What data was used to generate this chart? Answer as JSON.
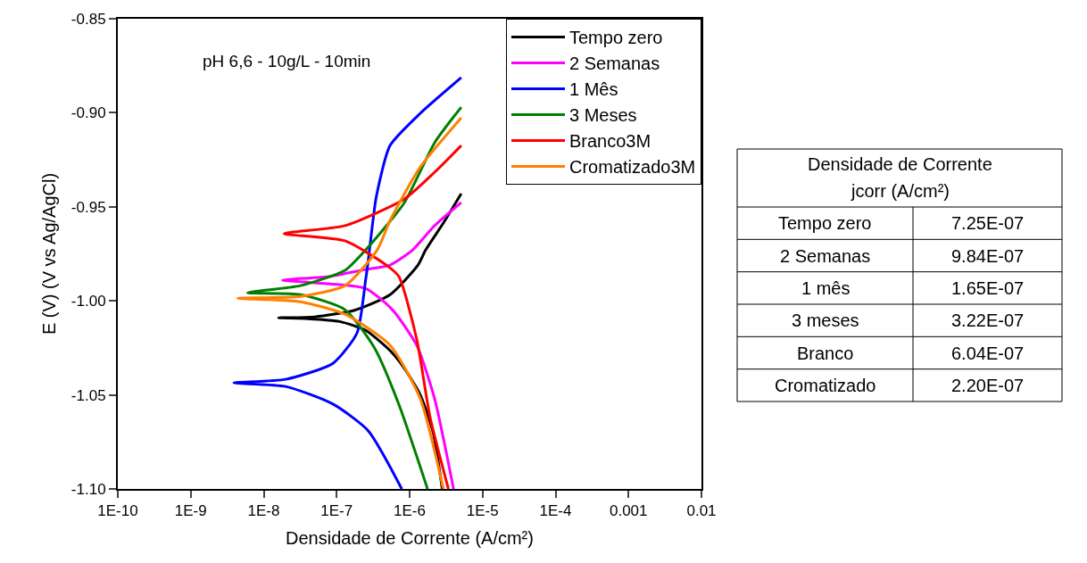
{
  "chart_data": [
    {
      "type": "line",
      "xlabel": "Densidade de Corrente (A/cm²)",
      "ylabel": "E (V) (V vs Ag/AgCl)",
      "log": "x",
      "xlim": [
        1e-10,
        0.01
      ],
      "ylim": [
        -1.1,
        -0.85
      ],
      "xticks": [
        {
          "value": 1e-10,
          "label": "1E-10"
        },
        {
          "value": 1e-09,
          "label": "1E-9"
        },
        {
          "value": 1e-08,
          "label": "1E-8"
        },
        {
          "value": 1e-07,
          "label": "1E-7"
        },
        {
          "value": 1e-06,
          "label": "1E-6"
        },
        {
          "value": 1e-05,
          "label": "1E-5"
        },
        {
          "value": 0.0001,
          "label": "1E-4"
        },
        0.001,
        0.01
      ],
      "yticks": [
        -0.85,
        {
          "value": -0.9,
          "label": "-0.90"
        },
        -0.95,
        {
          "value": -1.0,
          "label": "-1.00"
        },
        -1.05,
        {
          "value": -1.1,
          "label": "-1.10"
        }
      ],
      "legend": "top right",
      "marker": "none",
      "line_style": "solid",
      "annotations": [
        "pH 6,6 - 10g/L - 10min"
      ],
      "series": [
        {
          "name": "Tempo zero",
          "color": "#000000",
          "x": [
            2.8e-06,
            2.1e-06,
            1.4e-06,
            8.5e-07,
            5.4e-07,
            2.5e-07,
            1.1e-07,
            4e-08,
            1.6e-08,
            5e-08,
            1.76e-07,
            5.4e-07,
            1.3e-06,
            1.66e-06,
            2.9e-06,
            5.1e-06
          ],
          "values": [
            -1.1,
            -1.07,
            -1.05,
            -1.036,
            -1.0265,
            -1.0157,
            -1.011,
            -1.0095,
            -1.009,
            -1.0085,
            -1.005,
            -0.9967,
            -0.981,
            -0.9729,
            -0.9586,
            -0.943
          ]
        },
        {
          "name": "2 Semanas",
          "color": "#ff00ff",
          "x": [
            4e-06,
            2.2e-06,
            1.25e-06,
            5.8e-07,
            2.5e-07,
            5e-08,
            1.8e-08,
            8.2e-08,
            2.5e-07,
            5.4e-07,
            1.1e-06,
            2.2e-06,
            5.1e-06
          ],
          "values": [
            -1.1,
            -1.052,
            -1.0236,
            -1.0047,
            -0.9934,
            -0.9904,
            -0.989,
            -0.987,
            -0.9833,
            -0.981,
            -0.9729,
            -0.96,
            -0.9477
          ]
        },
        {
          "name": "1 Mês",
          "color": "#0000ff",
          "x": [
            7.8e-07,
            2.7e-07,
            8.9e-08,
            2e-08,
            3.9e-09,
            2e-08,
            8.9e-08,
            1.9e-07,
            2.5e-07,
            2.7e-07,
            3.5e-07,
            5.4e-07,
            1.4e-06,
            5.1e-06
          ],
          "values": [
            -1.1,
            -1.069,
            -1.0549,
            -1.0455,
            -1.0436,
            -1.0417,
            -1.0332,
            -1.0171,
            -0.9885,
            -0.979,
            -0.9444,
            -0.9174,
            -0.9003,
            -0.8813
          ]
        },
        {
          "name": "3 Meses",
          "color": "#008000",
          "x": [
            1.76e-06,
            7.1e-07,
            3.3e-07,
            1.3e-07,
            3.2e-08,
            6e-09,
            3.2e-08,
            1.3e-07,
            2.5e-07,
            8.5e-07,
            2.2e-06,
            5.1e-06
          ],
          "values": [
            -1.1,
            -1.0549,
            -1.025,
            -1.0047,
            -0.9967,
            -0.9957,
            -0.9919,
            -0.9838,
            -0.9729,
            -0.9477,
            -0.9159,
            -0.897
          ]
        },
        {
          "name": "Branco3M",
          "color": "#ff0000",
          "x": [
            3.4e-06,
            1.9e-06,
            1.25e-06,
            7.1e-07,
            4.8e-07,
            1.3e-07,
            1.9e-08,
            1.3e-07,
            8.5e-07,
            2.2e-06,
            5.1e-06
          ],
          "values": [
            -1.1,
            -1.0616,
            -1.0203,
            -0.987,
            -0.981,
            -0.9681,
            -0.9643,
            -0.96,
            -0.9458,
            -0.9316,
            -0.9174
          ]
        },
        {
          "name": "Cromatizado3M",
          "color": "#ff8000",
          "x": [
            2.9e-06,
            1.4e-06,
            5.4e-07,
            1.3e-07,
            3.2e-08,
            4.4e-09,
            3.2e-08,
            1.3e-07,
            3.6e-07,
            5.4e-07,
            1.4e-06,
            5.1e-06
          ],
          "values": [
            -1.1,
            -1.052,
            -1.0236,
            -1.0071,
            -1.0005,
            -0.9986,
            -0.9976,
            -0.9919,
            -0.9729,
            -0.9572,
            -0.9288,
            -0.9027
          ]
        }
      ]
    },
    {
      "type": "other",
      "title": "Densidade de Corrente",
      "subtitle": "jcorr (A/cm²)",
      "categories": [
        "Tempo zero",
        "2 Semanas",
        "1 mês",
        "3 meses",
        "Branco",
        "Cromatizado"
      ],
      "value_labels": [
        "7.25E-07",
        "9.84E-07",
        "1.65E-07",
        "3.22E-07",
        "6.04E-07",
        "2.20E-07"
      ]
    }
  ]
}
